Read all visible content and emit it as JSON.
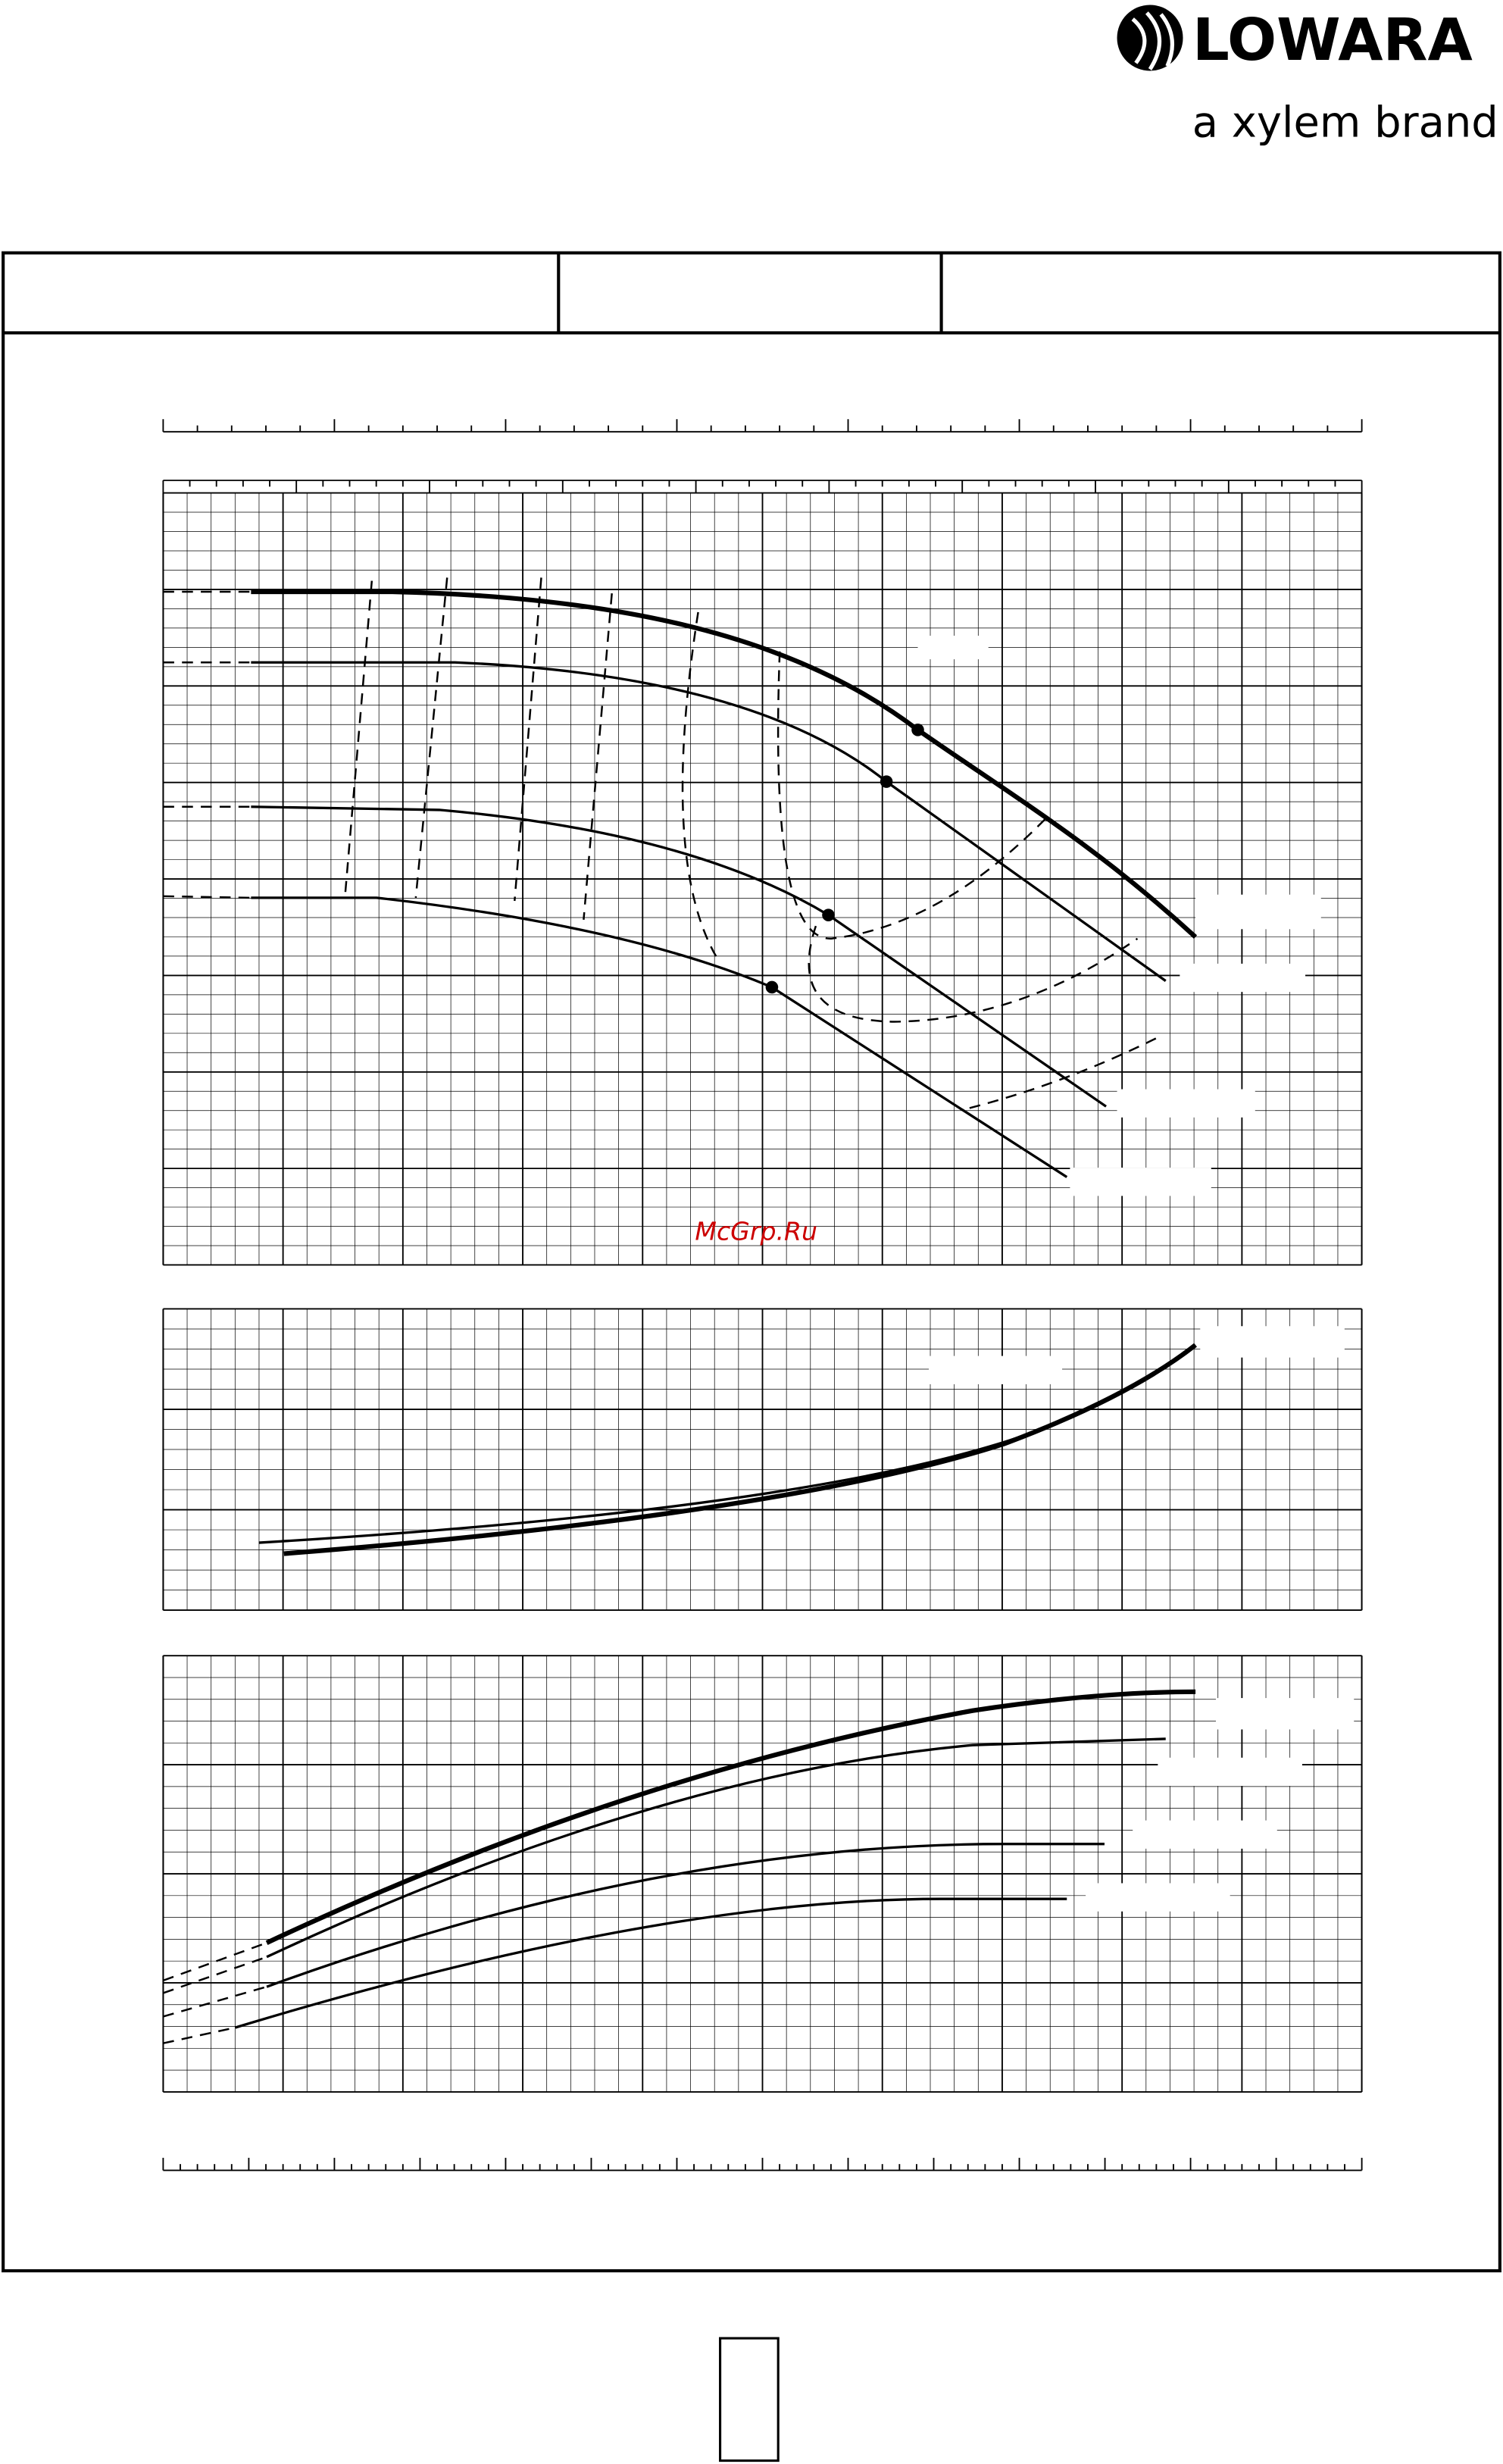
{
  "header": {
    "logo": "LOWARA",
    "tagline": "a xylem brand"
  },
  "watermark": "McGrp.Ru"
}
